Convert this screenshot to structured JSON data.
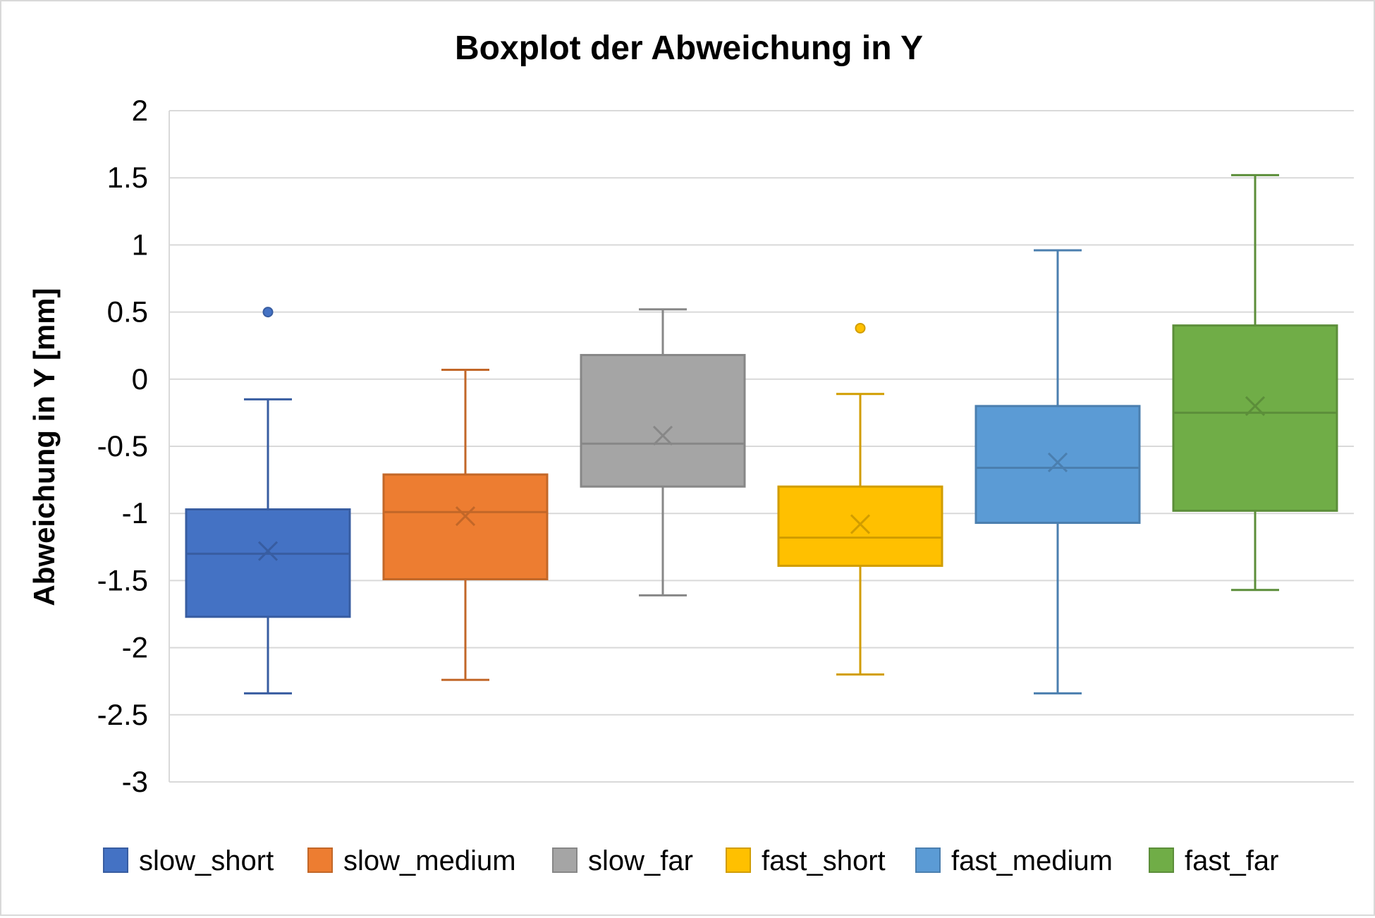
{
  "chart_data": {
    "type": "boxplot",
    "title": "Boxplot der Abweichung in Y",
    "xlabel": "",
    "ylabel": "Abweichung in Y [mm]",
    "ylim": [
      -3,
      2
    ],
    "yticks": [
      2,
      1.5,
      1,
      0.5,
      0,
      -0.5,
      -1,
      -1.5,
      -2,
      -2.5,
      -3
    ],
    "grid": true,
    "legend_position": "bottom",
    "series": [
      {
        "name": "slow_short",
        "color": "#4472C4",
        "whisker_low": -2.34,
        "q1": -1.77,
        "median": -1.3,
        "mean": -1.28,
        "q3": -0.97,
        "whisker_high": -0.15,
        "outliers": [
          0.5
        ]
      },
      {
        "name": "slow_medium",
        "color": "#ED7D31",
        "whisker_low": -2.24,
        "q1": -1.49,
        "median": -0.99,
        "mean": -1.02,
        "q3": -0.71,
        "whisker_high": 0.07,
        "outliers": []
      },
      {
        "name": "slow_far",
        "color": "#A5A5A5",
        "whisker_low": -1.61,
        "q1": -0.8,
        "median": -0.48,
        "mean": -0.42,
        "q3": 0.18,
        "whisker_high": 0.52,
        "outliers": []
      },
      {
        "name": "fast_short",
        "color": "#FFC000",
        "whisker_low": -2.2,
        "q1": -1.39,
        "median": -1.18,
        "mean": -1.08,
        "q3": -0.8,
        "whisker_high": -0.11,
        "outliers": [
          0.38
        ]
      },
      {
        "name": "fast_medium",
        "color": "#5B9BD5",
        "whisker_low": -2.34,
        "q1": -1.07,
        "median": -0.66,
        "mean": -0.62,
        "q3": -0.2,
        "whisker_high": 0.96,
        "outliers": []
      },
      {
        "name": "fast_far",
        "color": "#70AD47",
        "whisker_low": -1.57,
        "q1": -0.98,
        "median": -0.25,
        "mean": -0.2,
        "q3": 0.4,
        "whisker_high": 1.52,
        "outliers": []
      }
    ]
  }
}
